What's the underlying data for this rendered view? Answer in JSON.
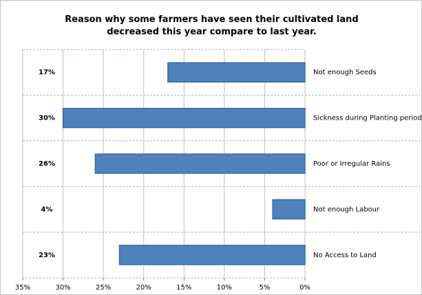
{
  "chart_data": {
    "type": "bar",
    "orientation": "horizontal",
    "title": "Reason why some farmers have seen their cultivated land decreased this year compare to last year.",
    "categories": [
      "Not enough Seeds",
      "Sickness during Planting period",
      "Poor or Irregular Rains",
      "Not enough Labour",
      "No Access to Land"
    ],
    "values": [
      17,
      30,
      26,
      4,
      23
    ],
    "value_labels": [
      "17%",
      "30%",
      "26%",
      "4%",
      "23%"
    ],
    "color": "#4f81bd",
    "xlim": [
      0,
      35
    ],
    "x_reversed": true,
    "xticks": [
      {
        "value": 35,
        "label": "35%"
      },
      {
        "value": 30,
        "label": "30%"
      },
      {
        "value": 25,
        "label": "25%"
      },
      {
        "value": 20,
        "label": "20%"
      },
      {
        "value": 15,
        "label": "15%"
      },
      {
        "value": 10,
        "label": "10%"
      },
      {
        "value": 5,
        "label": "5%"
      },
      {
        "value": 0,
        "label": "0%"
      }
    ],
    "grid": true
  }
}
